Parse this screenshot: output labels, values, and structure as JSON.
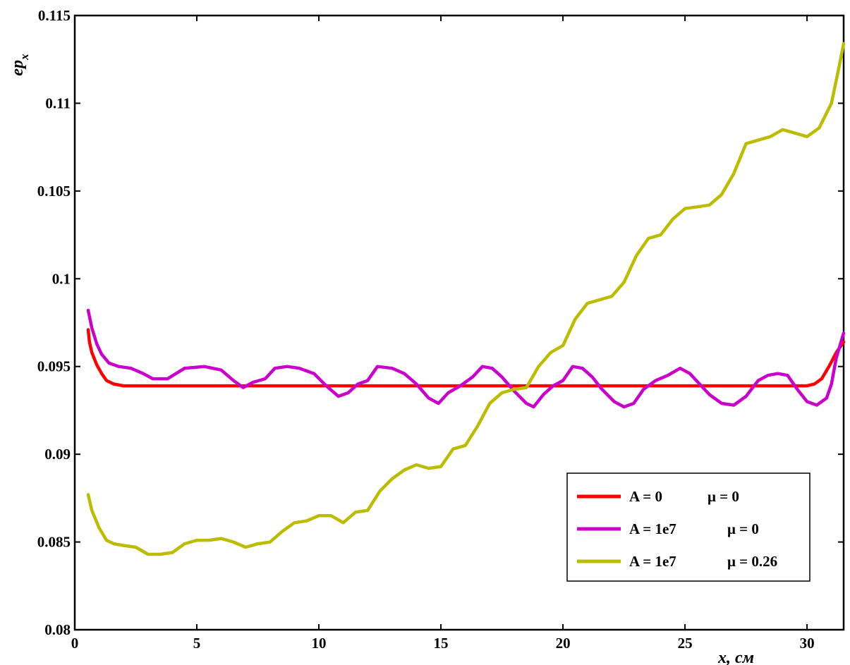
{
  "chart_data": {
    "type": "line",
    "xlabel": "x, см",
    "ylabel_main": "ep",
    "ylabel_sub": "x",
    "xlim": [
      0,
      31.5
    ],
    "ylim": [
      0.08,
      0.115
    ],
    "x_ticks": [
      0,
      5,
      10,
      15,
      20,
      25,
      30
    ],
    "x_tick_labels": [
      "0",
      "5",
      "10",
      "15",
      "20",
      "25",
      "30"
    ],
    "y_ticks": [
      0.08,
      0.085,
      0.09,
      0.095,
      0.1,
      0.105,
      0.11,
      0.115
    ],
    "y_tick_labels": [
      "0.08",
      "0.085",
      "0.09",
      "0.095",
      "0.1",
      "0.105",
      "0.11",
      "0.115"
    ],
    "grid": false,
    "legend_position": "bottom-right",
    "series": [
      {
        "name": "A = 0    μ = 0",
        "legend_parts": [
          "A = 0",
          "μ = 0"
        ],
        "color": "#ff0000",
        "x": [
          0.55,
          0.6,
          0.7,
          0.9,
          1.1,
          1.3,
          1.6,
          2.0,
          3,
          5,
          10,
          15,
          20,
          25,
          30,
          30.3,
          30.6,
          30.9,
          31.2,
          31.5
        ],
        "y": [
          0.0971,
          0.0964,
          0.0958,
          0.0951,
          0.0946,
          0.0942,
          0.094,
          0.0939,
          0.0939,
          0.0939,
          0.0939,
          0.0939,
          0.0939,
          0.0939,
          0.0939,
          0.094,
          0.0943,
          0.095,
          0.0958,
          0.0964
        ]
      },
      {
        "name": "A = 1e7    μ = 0",
        "legend_parts": [
          "A = 1e7",
          "μ = 0"
        ],
        "color": "#cc00cc",
        "x": [
          0.55,
          0.7,
          0.9,
          1.1,
          1.4,
          1.8,
          2.3,
          2.8,
          3.2,
          3.8,
          4.5,
          5.3,
          6.0,
          6.5,
          6.9,
          7.3,
          7.8,
          8.2,
          8.7,
          9.2,
          9.8,
          10.3,
          10.8,
          11.2,
          11.6,
          12.0,
          12.4,
          13.0,
          13.5,
          14.0,
          14.5,
          14.9,
          15.3,
          15.8,
          16.3,
          16.7,
          17.1,
          17.5,
          18.0,
          18.5,
          18.8,
          19.2,
          19.6,
          20.0,
          20.4,
          20.8,
          21.2,
          21.6,
          22.1,
          22.5,
          22.9,
          23.3,
          23.8,
          24.3,
          24.8,
          25.2,
          25.6,
          26.0,
          26.5,
          27.0,
          27.5,
          28.0,
          28.4,
          28.8,
          29.2,
          29.6,
          30.0,
          30.4,
          30.8,
          31.0,
          31.2,
          31.5
        ],
        "y": [
          0.0982,
          0.0972,
          0.0963,
          0.0957,
          0.0952,
          0.095,
          0.0949,
          0.0946,
          0.0943,
          0.0943,
          0.0949,
          0.095,
          0.0948,
          0.0942,
          0.0938,
          0.0941,
          0.0943,
          0.0949,
          0.095,
          0.0949,
          0.0946,
          0.0939,
          0.0933,
          0.0935,
          0.094,
          0.0942,
          0.095,
          0.0949,
          0.0946,
          0.094,
          0.0932,
          0.0929,
          0.0935,
          0.0939,
          0.0944,
          0.095,
          0.0949,
          0.0944,
          0.0936,
          0.0929,
          0.0927,
          0.0934,
          0.0939,
          0.0942,
          0.095,
          0.0949,
          0.0944,
          0.0937,
          0.093,
          0.0927,
          0.0929,
          0.0937,
          0.0942,
          0.0945,
          0.0949,
          0.0946,
          0.094,
          0.0934,
          0.0929,
          0.0928,
          0.0933,
          0.0942,
          0.0945,
          0.0946,
          0.0945,
          0.0937,
          0.093,
          0.0928,
          0.0932,
          0.094,
          0.0955,
          0.0969
        ]
      },
      {
        "name": "A = 1e7    μ = 0.26",
        "legend_parts": [
          "A = 1e7",
          "μ = 0.26"
        ],
        "color": "#bcbc00",
        "x": [
          0.55,
          0.7,
          1.0,
          1.3,
          1.6,
          2.0,
          2.5,
          3.0,
          3.5,
          4.0,
          4.5,
          5.0,
          5.5,
          6.0,
          6.5,
          7.0,
          7.5,
          8.0,
          8.5,
          9.0,
          9.5,
          10.0,
          10.5,
          11.0,
          11.5,
          12.0,
          12.5,
          13.0,
          13.5,
          14.0,
          14.5,
          15.0,
          15.5,
          16.0,
          16.5,
          17.0,
          17.5,
          18.0,
          18.5,
          19.0,
          19.5,
          20.0,
          20.5,
          21.0,
          21.5,
          22.0,
          22.5,
          23.0,
          23.5,
          24.0,
          24.5,
          25.0,
          25.5,
          26.0,
          26.5,
          27.0,
          27.5,
          28.0,
          28.5,
          29.0,
          29.5,
          30.0,
          30.5,
          31.0,
          31.3,
          31.5
        ],
        "y": [
          0.0877,
          0.0868,
          0.0858,
          0.0851,
          0.0849,
          0.0848,
          0.0847,
          0.0843,
          0.0843,
          0.0844,
          0.0849,
          0.0851,
          0.0851,
          0.0852,
          0.085,
          0.0847,
          0.0849,
          0.085,
          0.0856,
          0.0861,
          0.0862,
          0.0865,
          0.0865,
          0.0861,
          0.0867,
          0.0868,
          0.0879,
          0.0886,
          0.0891,
          0.0894,
          0.0892,
          0.0893,
          0.0903,
          0.0905,
          0.0916,
          0.0929,
          0.0935,
          0.0937,
          0.0938,
          0.095,
          0.0958,
          0.0962,
          0.0977,
          0.0986,
          0.0988,
          0.099,
          0.0998,
          0.1013,
          0.1023,
          0.1025,
          0.1034,
          0.104,
          0.1041,
          0.1042,
          0.1048,
          0.106,
          0.1077,
          0.1079,
          0.1081,
          0.1085,
          0.1083,
          0.1081,
          0.1086,
          0.11,
          0.112,
          0.1134
        ]
      }
    ]
  }
}
